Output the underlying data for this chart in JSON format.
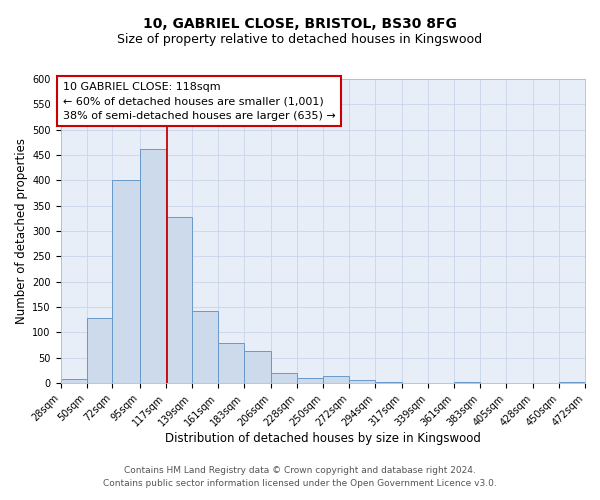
{
  "title": "10, GABRIEL CLOSE, BRISTOL, BS30 8FG",
  "subtitle": "Size of property relative to detached houses in Kingswood",
  "xlabel": "Distribution of detached houses by size in Kingswood",
  "ylabel": "Number of detached properties",
  "bin_edges": [
    28,
    50,
    72,
    95,
    117,
    139,
    161,
    183,
    206,
    228,
    250,
    272,
    294,
    317,
    339,
    361,
    383,
    405,
    428,
    450,
    472
  ],
  "bar_heights": [
    8,
    128,
    400,
    462,
    328,
    143,
    79,
    63,
    20,
    10,
    15,
    6,
    3,
    0,
    0,
    3,
    0,
    0,
    0,
    3
  ],
  "bar_color": "#ccdaeb",
  "bar_edge_color": "#6699cc",
  "property_line_x": 118,
  "property_line_color": "#cc0000",
  "annotation_line1": "10 GABRIEL CLOSE: 118sqm",
  "annotation_line2": "← 60% of detached houses are smaller (1,001)",
  "annotation_line3": "38% of semi-detached houses are larger (635) →",
  "annotation_box_color": "#ffffff",
  "annotation_box_edge_color": "#cc0000",
  "ylim": [
    0,
    600
  ],
  "yticks": [
    0,
    50,
    100,
    150,
    200,
    250,
    300,
    350,
    400,
    450,
    500,
    550,
    600
  ],
  "grid_color": "#c8d4e8",
  "background_color": "#e8eef8",
  "footer_line1": "Contains HM Land Registry data © Crown copyright and database right 2024.",
  "footer_line2": "Contains public sector information licensed under the Open Government Licence v3.0.",
  "title_fontsize": 10,
  "subtitle_fontsize": 9,
  "xlabel_fontsize": 8.5,
  "ylabel_fontsize": 8.5,
  "tick_fontsize": 7,
  "annotation_fontsize": 8,
  "footer_fontsize": 6.5
}
